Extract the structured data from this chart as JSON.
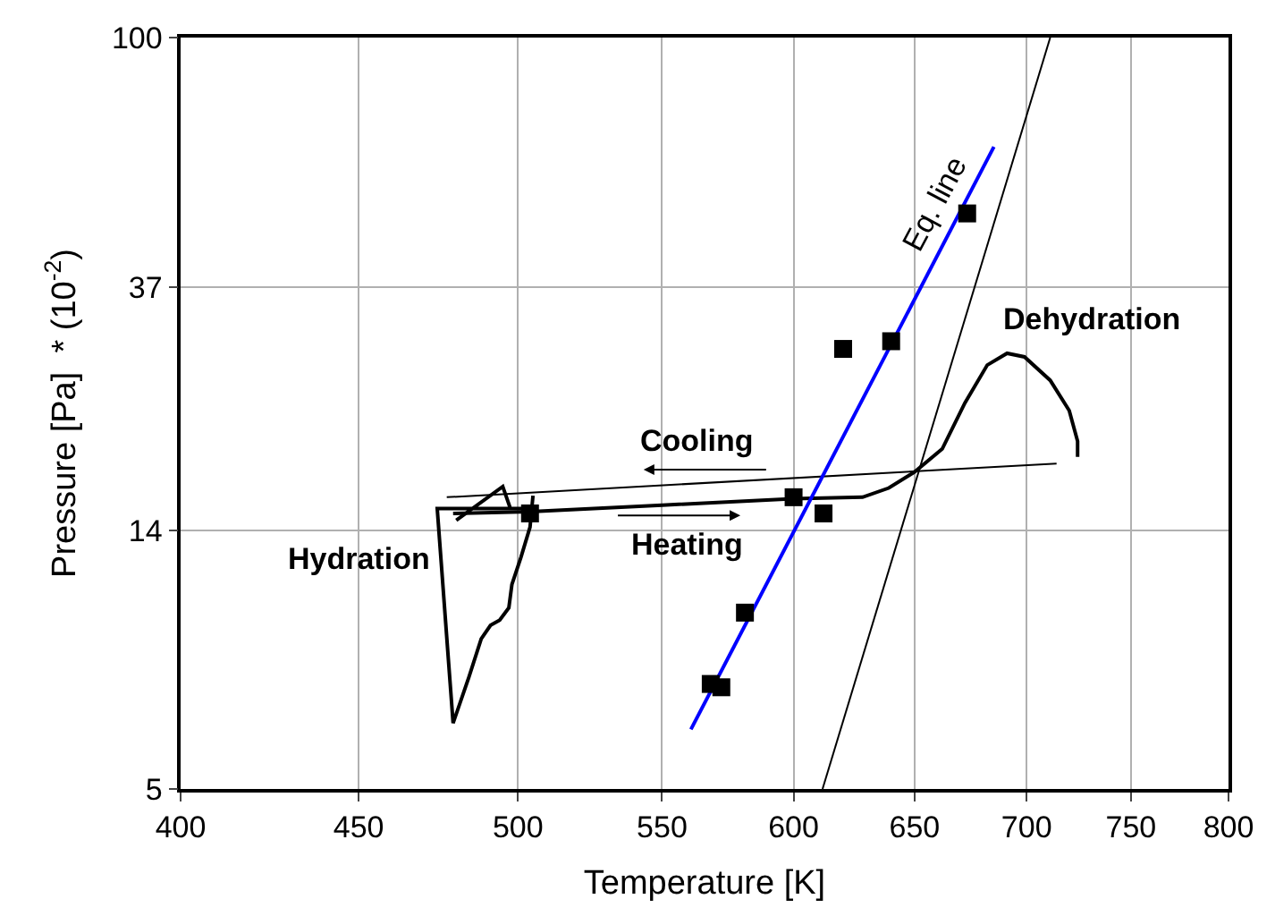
{
  "chart_data": {
    "type": "line",
    "xlabel": "Temperature [K]",
    "ylabel": "Pressure [Pa]  * (10$^{-2}$)",
    "xlim": [
      400,
      800
    ],
    "xticks": [
      400,
      450,
      500,
      550,
      600,
      650,
      700,
      750,
      800
    ],
    "ylim": [
      5,
      100
    ],
    "yticks": [
      5,
      14,
      37,
      100
    ],
    "log": "xy",
    "grid": true,
    "series": [
      {
        "color": "#000000",
        "x": [
          480,
          495,
          497.5,
          504,
          474,
          479,
          484,
          488,
          491,
          494,
          497,
          498,
          501,
          504,
          505
        ],
        "values": [
          14.6,
          16.7,
          15.3,
          15.3,
          15.3,
          6.5,
          7.8,
          9.1,
          9.6,
          9.8,
          10.3,
          11.3,
          12.6,
          14.2,
          16.1
        ]
      },
      {
        "color": "#000000",
        "x": [
          479,
          504,
          550,
          600,
          628,
          639,
          650,
          662,
          672,
          682,
          691,
          699,
          711,
          720,
          724,
          724
        ],
        "values": [
          15.0,
          15.1,
          15.5,
          15.9,
          16.0,
          16.6,
          17.7,
          19.4,
          23.3,
          27.1,
          28.4,
          28.0,
          25.5,
          22.6,
          20.0,
          18.8
        ]
      },
      {
        "color": "#000000",
        "x": [
          477,
          714
        ],
        "values": [
          16.0,
          18.3
        ]
      },
      {
        "color": "#000000",
        "x": [
          611.6,
          711
        ],
        "values": [
          5,
          100
        ]
      },
      {
        "color": "#0000ff",
        "x": [
          560.6,
          685
        ],
        "values": [
          6.34,
          64.7
        ]
      },
      {
        "type": "scatter",
        "marker": "square",
        "color": "#000000",
        "x": [
          504,
          568,
          572,
          581,
          600,
          612,
          620,
          640,
          673
        ],
        "values": [
          15.0,
          7.6,
          7.5,
          10.1,
          16.0,
          15.0,
          28.9,
          29.8,
          49.6
        ]
      }
    ],
    "annotations": [
      "Cooling",
      "Heating",
      "Hydration",
      "Dehydration",
      "Eq. line"
    ]
  }
}
